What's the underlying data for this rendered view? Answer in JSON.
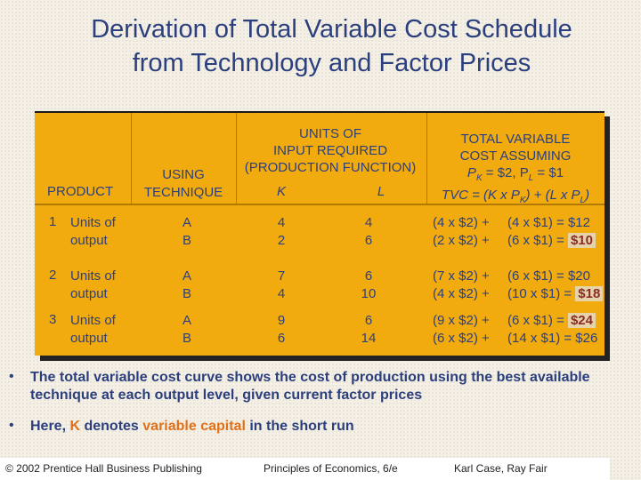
{
  "title": {
    "line1": "Derivation of Total Variable Cost Schedule",
    "line2": "from Technology and Factor Prices"
  },
  "table": {
    "headers": {
      "product": "PRODUCT",
      "technique_line1": "USING",
      "technique_line2": "TECHNIQUE",
      "units_line1": "UNITS OF",
      "units_line2": "INPUT REQUIRED",
      "units_line3": "(PRODUCTION FUNCTION)",
      "k": "K",
      "l": "L",
      "tvc_line1": "TOTAL VARIABLE",
      "tvc_line2": "COST ASSUMING",
      "tvc_line3_p": "P",
      "tvc_line3_k": "K",
      "tvc_line3_mid": " = $2, P",
      "tvc_line3_l": "L",
      "tvc_line3_end": " = $1",
      "tvc_line4_a": "TVC = (K x P",
      "tvc_line4_k": "K",
      "tvc_line4_b": ") + (L x P",
      "tvc_line4_l": "L",
      "tvc_line4_c": ")"
    },
    "rows": [
      {
        "num": "1",
        "label_line1": "Units of",
        "label_line2": "output",
        "tech": [
          "A",
          "B"
        ],
        "k": [
          "4",
          "2"
        ],
        "l": [
          "4",
          "6"
        ],
        "calc_a": [
          "(4 x $2) +",
          "(2 x $2) +"
        ],
        "calc_b": [
          "(4 x $1) = $12",
          "(6 x $1) ="
        ],
        "highlight": "$10"
      },
      {
        "num": "2",
        "label_line1": "Units of",
        "label_line2": "output",
        "tech": [
          "A",
          "B"
        ],
        "k": [
          "7",
          "4"
        ],
        "l": [
          "6",
          "10"
        ],
        "calc_a": [
          "(7 x $2) +",
          "(4 x $2) +"
        ],
        "calc_b": [
          "(6 x $1) = $20",
          "(10 x $1) ="
        ],
        "highlight": "$18"
      },
      {
        "num": "3",
        "label_line1": "Units of",
        "label_line2": "output",
        "tech": [
          "A",
          "B"
        ],
        "k": [
          "9",
          "6"
        ],
        "l": [
          "6",
          "14"
        ],
        "calc_a": [
          "(9 x $2) +",
          "(6 x $2) +"
        ],
        "calc_b": [
          "(6 x $1) =",
          "(14 x $1) = $26"
        ],
        "highlight": "$24"
      }
    ]
  },
  "bullets": {
    "b1": "The total variable cost curve shows the cost of production using the best available technique at each output level, given current factor prices",
    "b2_prefix": "Here, ",
    "b2_k": "K",
    "b2_mid": " denotes ",
    "b2_vc": "variable capital",
    "b2_suffix": " in the short run"
  },
  "footer": {
    "copyright": "© 2002 Prentice Hall Business Publishing",
    "book": "Principles of Economics, 6/e",
    "authors": "Karl Case, Ray Fair"
  },
  "colors": {
    "title": "#2b3f7e",
    "table_fill": "#f1ab0e",
    "highlight_text": "#8b2a2a",
    "highlight_bg": "#e6d4a8",
    "accent_orange": "#e0701a"
  }
}
